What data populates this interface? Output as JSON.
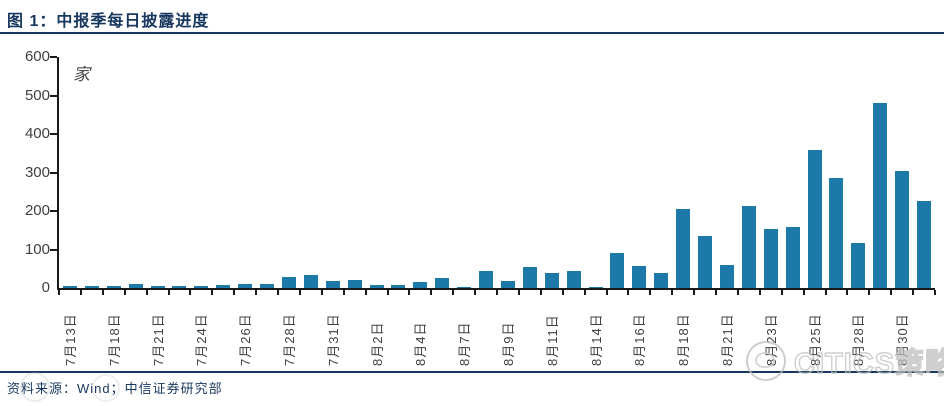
{
  "figure": {
    "title": "图 1：中报季每日披露进度",
    "source": "资料来源：Wind；中信证券研究部",
    "watermark": "CITICS策略"
  },
  "chart_data": {
    "type": "bar",
    "title": "中报季每日披露进度",
    "ylabel": "家",
    "unit_label": "家",
    "ylim": [
      0,
      600
    ],
    "yticks": [
      600,
      500,
      400,
      300,
      200,
      100,
      0
    ],
    "grid": false,
    "legend": "none",
    "bar_color": "#1E79AB",
    "label_every_n_bars": 2,
    "x_tick_labels": [
      "7月13日",
      "7月18日",
      "7月21日",
      "7月24日",
      "7月26日",
      "7月28日",
      "7月31日",
      "8月2日",
      "8月4日",
      "8月7日",
      "8月9日",
      "8月11日",
      "8月14日",
      "8月16日",
      "8月18日",
      "8月21日",
      "8月23日",
      "8月25日",
      "8月28日",
      "8月30日"
    ],
    "values": [
      5,
      5,
      5,
      10,
      5,
      6,
      5,
      8,
      10,
      10,
      28,
      33,
      17,
      21,
      7,
      9,
      15,
      27,
      2,
      45,
      17,
      55,
      39,
      43,
      2,
      90,
      57,
      38,
      205,
      135,
      60,
      212,
      152,
      158,
      358,
      287,
      118,
      480,
      305,
      225
    ],
    "labeled_points": [
      {
        "label": "7月13日",
        "value": 5
      },
      {
        "label": "7月18日",
        "value": 5
      },
      {
        "label": "7月21日",
        "value": 5
      },
      {
        "label": "7月24日",
        "value": 5
      },
      {
        "label": "7月26日",
        "value": 10
      },
      {
        "label": "7月28日",
        "value": 28
      },
      {
        "label": "7月31日",
        "value": 17
      },
      {
        "label": "8月2日",
        "value": 7
      },
      {
        "label": "8月4日",
        "value": 15
      },
      {
        "label": "8月7日",
        "value": 2
      },
      {
        "label": "8月9日",
        "value": 17
      },
      {
        "label": "8月11日",
        "value": 39
      },
      {
        "label": "8月14日",
        "value": 2
      },
      {
        "label": "8月16日",
        "value": 57
      },
      {
        "label": "8月18日",
        "value": 205
      },
      {
        "label": "8月21日",
        "value": 60
      },
      {
        "label": "8月23日",
        "value": 152
      },
      {
        "label": "8月25日",
        "value": 358
      },
      {
        "label": "8月28日",
        "value": 118
      },
      {
        "label": "8月30日",
        "value": 305
      }
    ],
    "colors": {
      "bar": "#1E79AB",
      "accent_navy": "#17375E",
      "axis": "#1a1a1a",
      "tick_label": "#3f3f3f",
      "watermark_gray": "#bfbfbf"
    }
  }
}
